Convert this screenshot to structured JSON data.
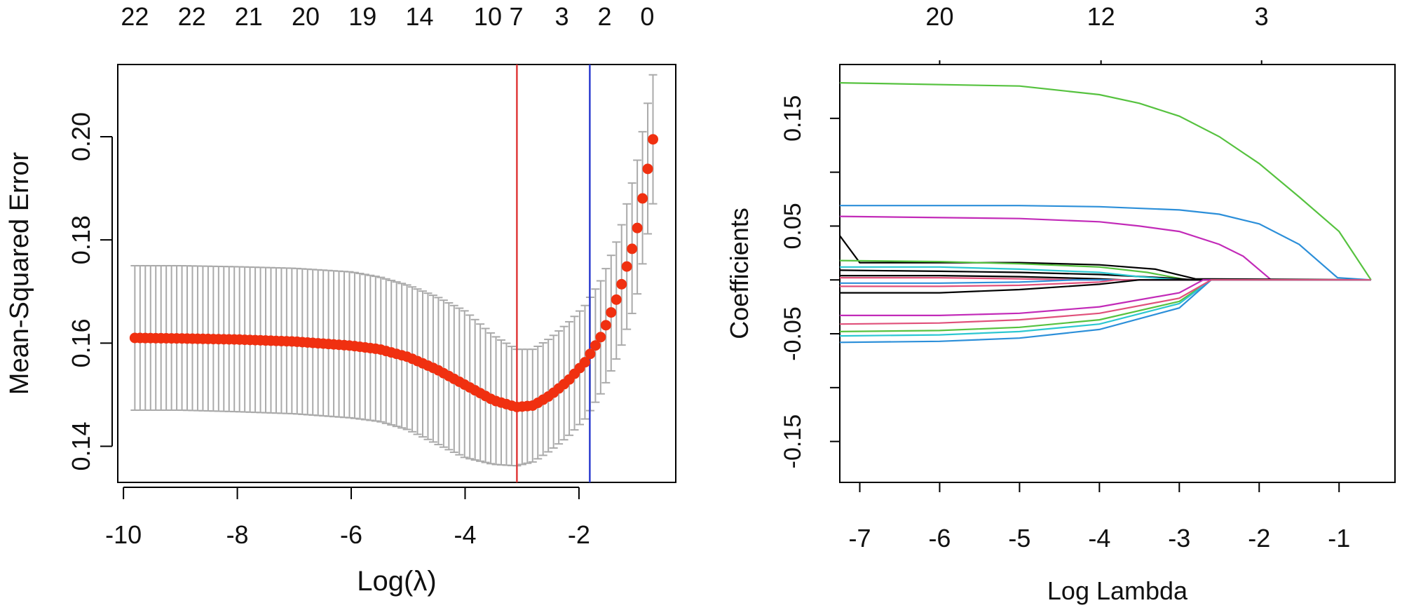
{
  "chart_data": [
    {
      "type": "scatter",
      "title": "",
      "xlabel": "Log(λ)",
      "ylabel": "Mean-Squared Error",
      "xlim": [
        -10.1,
        -0.3
      ],
      "ylim": [
        0.133,
        0.214
      ],
      "x_ticks": [
        -10,
        -8,
        -6,
        -4,
        -2
      ],
      "x_tick_labels": [
        "-10",
        "-8",
        "-6",
        "-4",
        "-2"
      ],
      "y_ticks": [
        0.14,
        0.16,
        0.18,
        0.2
      ],
      "y_tick_labels": [
        "0.14",
        "0.16",
        "0.18",
        "0.20"
      ],
      "top_axis": {
        "x": [
          -9.8,
          -8.8,
          -7.8,
          -6.8,
          -5.8,
          -4.8,
          -3.6,
          -3.1,
          -2.3,
          -1.55,
          -0.8
        ],
        "labels": [
          "22",
          "22",
          "21",
          "20",
          "19",
          "14",
          "10",
          "7",
          "3",
          "2",
          "0"
        ]
      },
      "vlines": [
        {
          "name": "lambda.min",
          "x": -3.09,
          "color": "#e03a3a"
        },
        {
          "name": "lambda.1se",
          "x": -1.81,
          "color": "#2c3cd0"
        }
      ],
      "curve_points": {
        "x": [
          -9.8,
          -9.0,
          -8.0,
          -7.0,
          -6.0,
          -5.5,
          -5.0,
          -4.5,
          -4.0,
          -3.5,
          -3.1,
          -2.8,
          -2.5,
          -2.2,
          -1.9,
          -1.6,
          -1.3,
          -1.0,
          -0.7
        ],
        "y": [
          0.161,
          0.1609,
          0.1607,
          0.1603,
          0.1595,
          0.1588,
          0.1573,
          0.1549,
          0.1519,
          0.1489,
          0.1476,
          0.1479,
          0.1499,
          0.1526,
          0.1562,
          0.1615,
          0.1696,
          0.1808,
          0.1995
        ]
      },
      "err_lower": {
        "x": [
          -9.8,
          -9.0,
          -8.0,
          -7.0,
          -6.0,
          -5.5,
          -5.0,
          -4.5,
          -4.0,
          -3.5,
          -3.1,
          -2.8,
          -2.5,
          -2.2,
          -1.9,
          -1.6,
          -1.3,
          -1.0,
          -0.7
        ],
        "y": [
          0.147,
          0.147,
          0.1467,
          0.1463,
          0.1455,
          0.1448,
          0.1432,
          0.1405,
          0.1378,
          0.1365,
          0.1362,
          0.137,
          0.1392,
          0.1418,
          0.1452,
          0.1505,
          0.158,
          0.168,
          0.187
        ]
      },
      "err_upper": {
        "x": [
          -9.8,
          -9.0,
          -8.0,
          -7.0,
          -6.0,
          -5.5,
          -5.0,
          -4.5,
          -4.0,
          -3.5,
          -3.1,
          -2.8,
          -2.5,
          -2.2,
          -1.9,
          -1.6,
          -1.3,
          -1.0,
          -0.7
        ],
        "y": [
          0.175,
          0.175,
          0.1748,
          0.1745,
          0.1738,
          0.1728,
          0.1712,
          0.169,
          0.1662,
          0.1615,
          0.1588,
          0.1588,
          0.161,
          0.1638,
          0.1672,
          0.1724,
          0.1808,
          0.194,
          0.212
        ]
      },
      "colors": {
        "points": "#f03010",
        "errorbars": "#aaaaaa"
      }
    },
    {
      "type": "line",
      "title": "",
      "xlabel": "Log Lambda",
      "ylabel": "Coefficients",
      "xlim": [
        -7.25,
        -0.3
      ],
      "ylim": [
        -0.188,
        0.2
      ],
      "x_ticks": [
        -7,
        -6,
        -5,
        -4,
        -3,
        -2,
        -1
      ],
      "x_tick_labels": [
        "-7",
        "-6",
        "-5",
        "-4",
        "-3",
        "-2",
        "-1"
      ],
      "y_ticks": [
        -0.15,
        -0.05,
        0.05,
        0.15
      ],
      "y_tick_labels": [
        "-0.15",
        "-0.05",
        "0.05",
        "0.15"
      ],
      "top_axis": {
        "x": [
          -6.0,
          -3.98,
          -1.97
        ],
        "labels": [
          "20",
          "12",
          "3"
        ]
      },
      "series": [
        {
          "color": "#56c23f",
          "x": [
            -7.25,
            -5.0,
            -4.0,
            -3.5,
            -3.0,
            -2.5,
            -2.0,
            -1.5,
            -1.0,
            -0.6
          ],
          "y": [
            0.183,
            0.18,
            0.172,
            0.164,
            0.152,
            0.133,
            0.108,
            0.077,
            0.045,
            0.0
          ]
        },
        {
          "color": "#2c8fd9",
          "x": [
            -7.25,
            -5.0,
            -4.0,
            -3.0,
            -2.5,
            -2.0,
            -1.5,
            -1.02,
            -0.6
          ],
          "y": [
            0.069,
            0.069,
            0.068,
            0.065,
            0.061,
            0.052,
            0.033,
            0.002,
            0.0
          ]
        },
        {
          "color": "#c22ab8",
          "x": [
            -7.25,
            -5.0,
            -4.0,
            -3.5,
            -3.0,
            -2.5,
            -2.2,
            -1.85,
            -0.6
          ],
          "y": [
            0.059,
            0.057,
            0.054,
            0.05,
            0.045,
            0.033,
            0.022,
            0.0,
            0.0
          ]
        },
        {
          "color": "#000000",
          "x": [
            -7.25,
            -7.0,
            -5.0,
            -4.0,
            -3.3,
            -2.8,
            -0.6
          ],
          "y": [
            0.041,
            0.016,
            0.016,
            0.014,
            0.01,
            0.001,
            0.0
          ]
        },
        {
          "color": "#56c23f",
          "x": [
            -7.25,
            -6.0,
            -5.0,
            -4.0,
            -3.4,
            -2.9,
            -0.6
          ],
          "y": [
            0.018,
            0.017,
            0.015,
            0.012,
            0.007,
            0.0,
            0.0
          ]
        },
        {
          "color": "#000000",
          "x": [
            -7.25,
            -6.0,
            -5.0,
            -4.0,
            -3.2,
            -2.8,
            -0.6
          ],
          "y": [
            0.009,
            0.008,
            0.007,
            0.005,
            0.002,
            0.0,
            0.0
          ]
        },
        {
          "color": "#2cc7d1",
          "x": [
            -7.25,
            -6.0,
            -5.0,
            -4.0,
            -3.5,
            -3.0,
            -0.6
          ],
          "y": [
            0.012,
            0.012,
            0.01,
            0.007,
            0.003,
            0.0,
            0.0
          ]
        },
        {
          "color": "#000000",
          "x": [
            -7.25,
            -6.0,
            -5.0,
            -4.0,
            -3.7,
            -0.6
          ],
          "y": [
            0.004,
            0.004,
            0.003,
            0.001,
            0.0,
            0.0
          ]
        },
        {
          "color": "#e0507a",
          "x": [
            -7.25,
            -6.0,
            -5.0,
            -4.3,
            -0.6
          ],
          "y": [
            0.002,
            0.002,
            0.001,
            0.0,
            0.0
          ]
        },
        {
          "color": "#2c8fd9",
          "x": [
            -7.25,
            -6.0,
            -5.0,
            -4.3,
            -0.6
          ],
          "y": [
            -0.003,
            -0.003,
            -0.002,
            0.0,
            0.0
          ]
        },
        {
          "color": "#e0507a",
          "x": [
            -7.25,
            -6.0,
            -5.0,
            -4.0,
            -3.8,
            -0.6
          ],
          "y": [
            -0.006,
            -0.006,
            -0.005,
            -0.002,
            0.0,
            0.0
          ]
        },
        {
          "color": "#000000",
          "x": [
            -7.25,
            -6.0,
            -5.0,
            -4.0,
            -3.5,
            -0.6
          ],
          "y": [
            -0.012,
            -0.012,
            -0.009,
            -0.004,
            0.0,
            0.0
          ]
        },
        {
          "color": "#c22ab8",
          "x": [
            -7.25,
            -6.0,
            -5.0,
            -4.0,
            -3.0,
            -2.7,
            -0.6
          ],
          "y": [
            -0.033,
            -0.033,
            -0.031,
            -0.025,
            -0.012,
            0.0,
            0.0
          ]
        },
        {
          "color": "#56c23f",
          "x": [
            -7.25,
            -6.0,
            -5.0,
            -4.0,
            -3.0,
            -2.6,
            -0.6
          ],
          "y": [
            -0.048,
            -0.047,
            -0.044,
            -0.037,
            -0.02,
            0.0,
            0.0
          ]
        },
        {
          "color": "#2cc7d1",
          "x": [
            -7.25,
            -6.0,
            -5.0,
            -4.0,
            -3.0,
            -2.6,
            -0.6
          ],
          "y": [
            -0.052,
            -0.051,
            -0.048,
            -0.041,
            -0.022,
            0.0,
            0.0
          ]
        },
        {
          "color": "#2c8fd9",
          "x": [
            -7.25,
            -6.0,
            -5.0,
            -4.0,
            -3.0,
            -2.6,
            -0.6
          ],
          "y": [
            -0.058,
            -0.057,
            -0.054,
            -0.046,
            -0.026,
            0.0,
            0.0
          ]
        },
        {
          "color": "#e0507a",
          "x": [
            -7.25,
            -6.0,
            -5.0,
            -4.0,
            -3.0,
            -2.6,
            -0.6
          ],
          "y": [
            -0.041,
            -0.04,
            -0.037,
            -0.031,
            -0.017,
            0.0,
            0.0
          ]
        }
      ]
    }
  ]
}
